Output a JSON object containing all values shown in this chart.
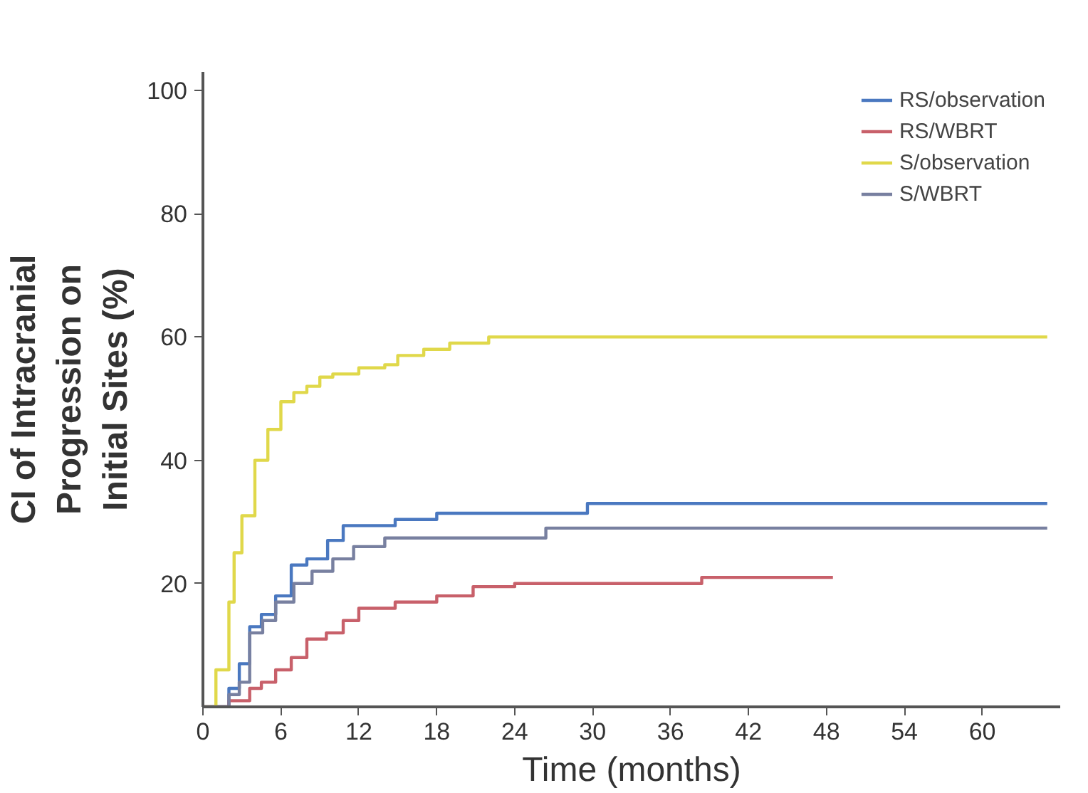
{
  "chart_data": {
    "type": "step",
    "xlabel": "Time (months)",
    "ylabel": "CI of Intracranial\nProgression on\nInitial Sites (%)",
    "xlim": [
      0,
      66
    ],
    "ylim": [
      0,
      103
    ],
    "xticks": [
      0,
      6,
      12,
      18,
      24,
      30,
      36,
      42,
      48,
      54,
      60
    ],
    "yticks": [
      20,
      40,
      60,
      80,
      100
    ],
    "grid": false,
    "legend": "top right",
    "line_style": "solid",
    "series": [
      {
        "name": "RS/observation",
        "color": "#4a78c0",
        "x": [
          0,
          2,
          2.8,
          3.6,
          4.5,
          5.6,
          6.8,
          8,
          9.6,
          10.8,
          14.8,
          18,
          29.6,
          65
        ],
        "values": [
          0,
          3,
          7,
          13,
          15,
          18,
          23,
          24,
          27,
          29.4,
          30.4,
          31.4,
          33,
          33
        ]
      },
      {
        "name": "RS/WBRT",
        "color": "#c8606a",
        "x": [
          0,
          2,
          3.6,
          4.5,
          5.6,
          6.8,
          8,
          9.5,
          10.8,
          12,
          14.8,
          18,
          20.8,
          24,
          38.4,
          48.5
        ],
        "values": [
          0,
          1,
          3,
          4,
          6,
          8,
          11,
          12,
          14,
          16,
          17,
          18,
          19.5,
          20,
          21,
          21
        ]
      },
      {
        "name": "S/observation",
        "color": "#e0d84a",
        "x": [
          0,
          1,
          2,
          2.4,
          3,
          4,
          5,
          6,
          7,
          8,
          9,
          10,
          12,
          14,
          15,
          17,
          19,
          22,
          65
        ],
        "values": [
          0,
          6,
          17,
          25,
          31,
          40,
          45,
          49.5,
          51,
          52,
          53.5,
          54,
          55,
          55.5,
          57,
          58,
          59,
          60,
          60
        ]
      },
      {
        "name": "S/WBRT",
        "color": "#7880a0",
        "x": [
          0,
          2,
          2.8,
          3.6,
          4.6,
          5.6,
          7,
          8.4,
          10,
          11.6,
          14,
          26.4,
          65
        ],
        "values": [
          0,
          2,
          4,
          12,
          14,
          17,
          20,
          22,
          24,
          26,
          27.4,
          29,
          29
        ]
      }
    ]
  }
}
